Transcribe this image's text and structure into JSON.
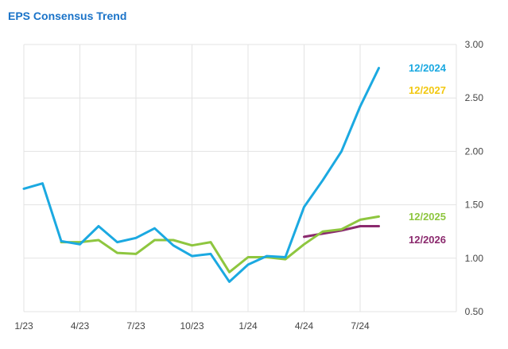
{
  "chart_data": {
    "type": "line",
    "title": "EPS Consensus Trend",
    "xlabel": "",
    "ylabel": "",
    "grid": true,
    "x_ticks": [
      "1/23",
      "4/23",
      "7/23",
      "10/23",
      "1/24",
      "4/24",
      "7/24"
    ],
    "y_ticks": [
      "3.00",
      "2.50",
      "2.00",
      "1.50",
      "1.00",
      "0.50"
    ],
    "y_axis_side": "right",
    "ylim": [
      0.5,
      3.0
    ],
    "x_months_range": [
      "2023-01",
      "2024-10"
    ],
    "series": [
      {
        "name": "12/2024",
        "color": "#1ba9e1",
        "x": [
          "2023-01",
          "2023-02",
          "2023-03",
          "2023-04",
          "2023-05",
          "2023-06",
          "2023-07",
          "2023-08",
          "2023-09",
          "2023-10",
          "2023-11",
          "2023-12",
          "2024-01",
          "2024-02",
          "2024-03",
          "2024-04",
          "2024-05",
          "2024-06",
          "2024-07",
          "2024-08",
          "2024-09"
        ],
        "values": [
          1.65,
          1.7,
          1.16,
          1.13,
          1.3,
          1.15,
          1.19,
          1.28,
          1.12,
          1.02,
          1.04,
          0.78,
          0.94,
          1.02,
          1.01,
          1.48,
          1.73,
          2.0,
          2.42,
          2.78,
          null
        ]
      },
      {
        "name": "12/2025",
        "color": "#8ec63f",
        "x": [
          "2023-01",
          "2023-02",
          "2023-03",
          "2023-04",
          "2023-05",
          "2023-06",
          "2023-07",
          "2023-08",
          "2023-09",
          "2023-10",
          "2023-11",
          "2023-12",
          "2024-01",
          "2024-02",
          "2024-03",
          "2024-04",
          "2024-05",
          "2024-06",
          "2024-07",
          "2024-08",
          "2024-09"
        ],
        "values": [
          null,
          null,
          1.15,
          1.15,
          1.17,
          1.05,
          1.04,
          1.17,
          1.17,
          1.12,
          1.15,
          0.87,
          1.01,
          1.01,
          0.99,
          1.13,
          1.25,
          1.27,
          1.36,
          1.39,
          null
        ]
      },
      {
        "name": "12/2026",
        "color": "#8b2a6e",
        "x": [
          "2023-01",
          "2023-02",
          "2023-03",
          "2023-04",
          "2023-05",
          "2023-06",
          "2023-07",
          "2023-08",
          "2023-09",
          "2023-10",
          "2023-11",
          "2023-12",
          "2024-01",
          "2024-02",
          "2024-03",
          "2024-04",
          "2024-05",
          "2024-06",
          "2024-07",
          "2024-08",
          "2024-09"
        ],
        "values": [
          null,
          null,
          null,
          null,
          null,
          null,
          null,
          null,
          null,
          null,
          null,
          null,
          null,
          null,
          null,
          1.2,
          1.23,
          1.26,
          1.3,
          1.3,
          null
        ]
      },
      {
        "name": "12/2027",
        "color": "#f2c811",
        "x": [],
        "values": []
      }
    ]
  }
}
